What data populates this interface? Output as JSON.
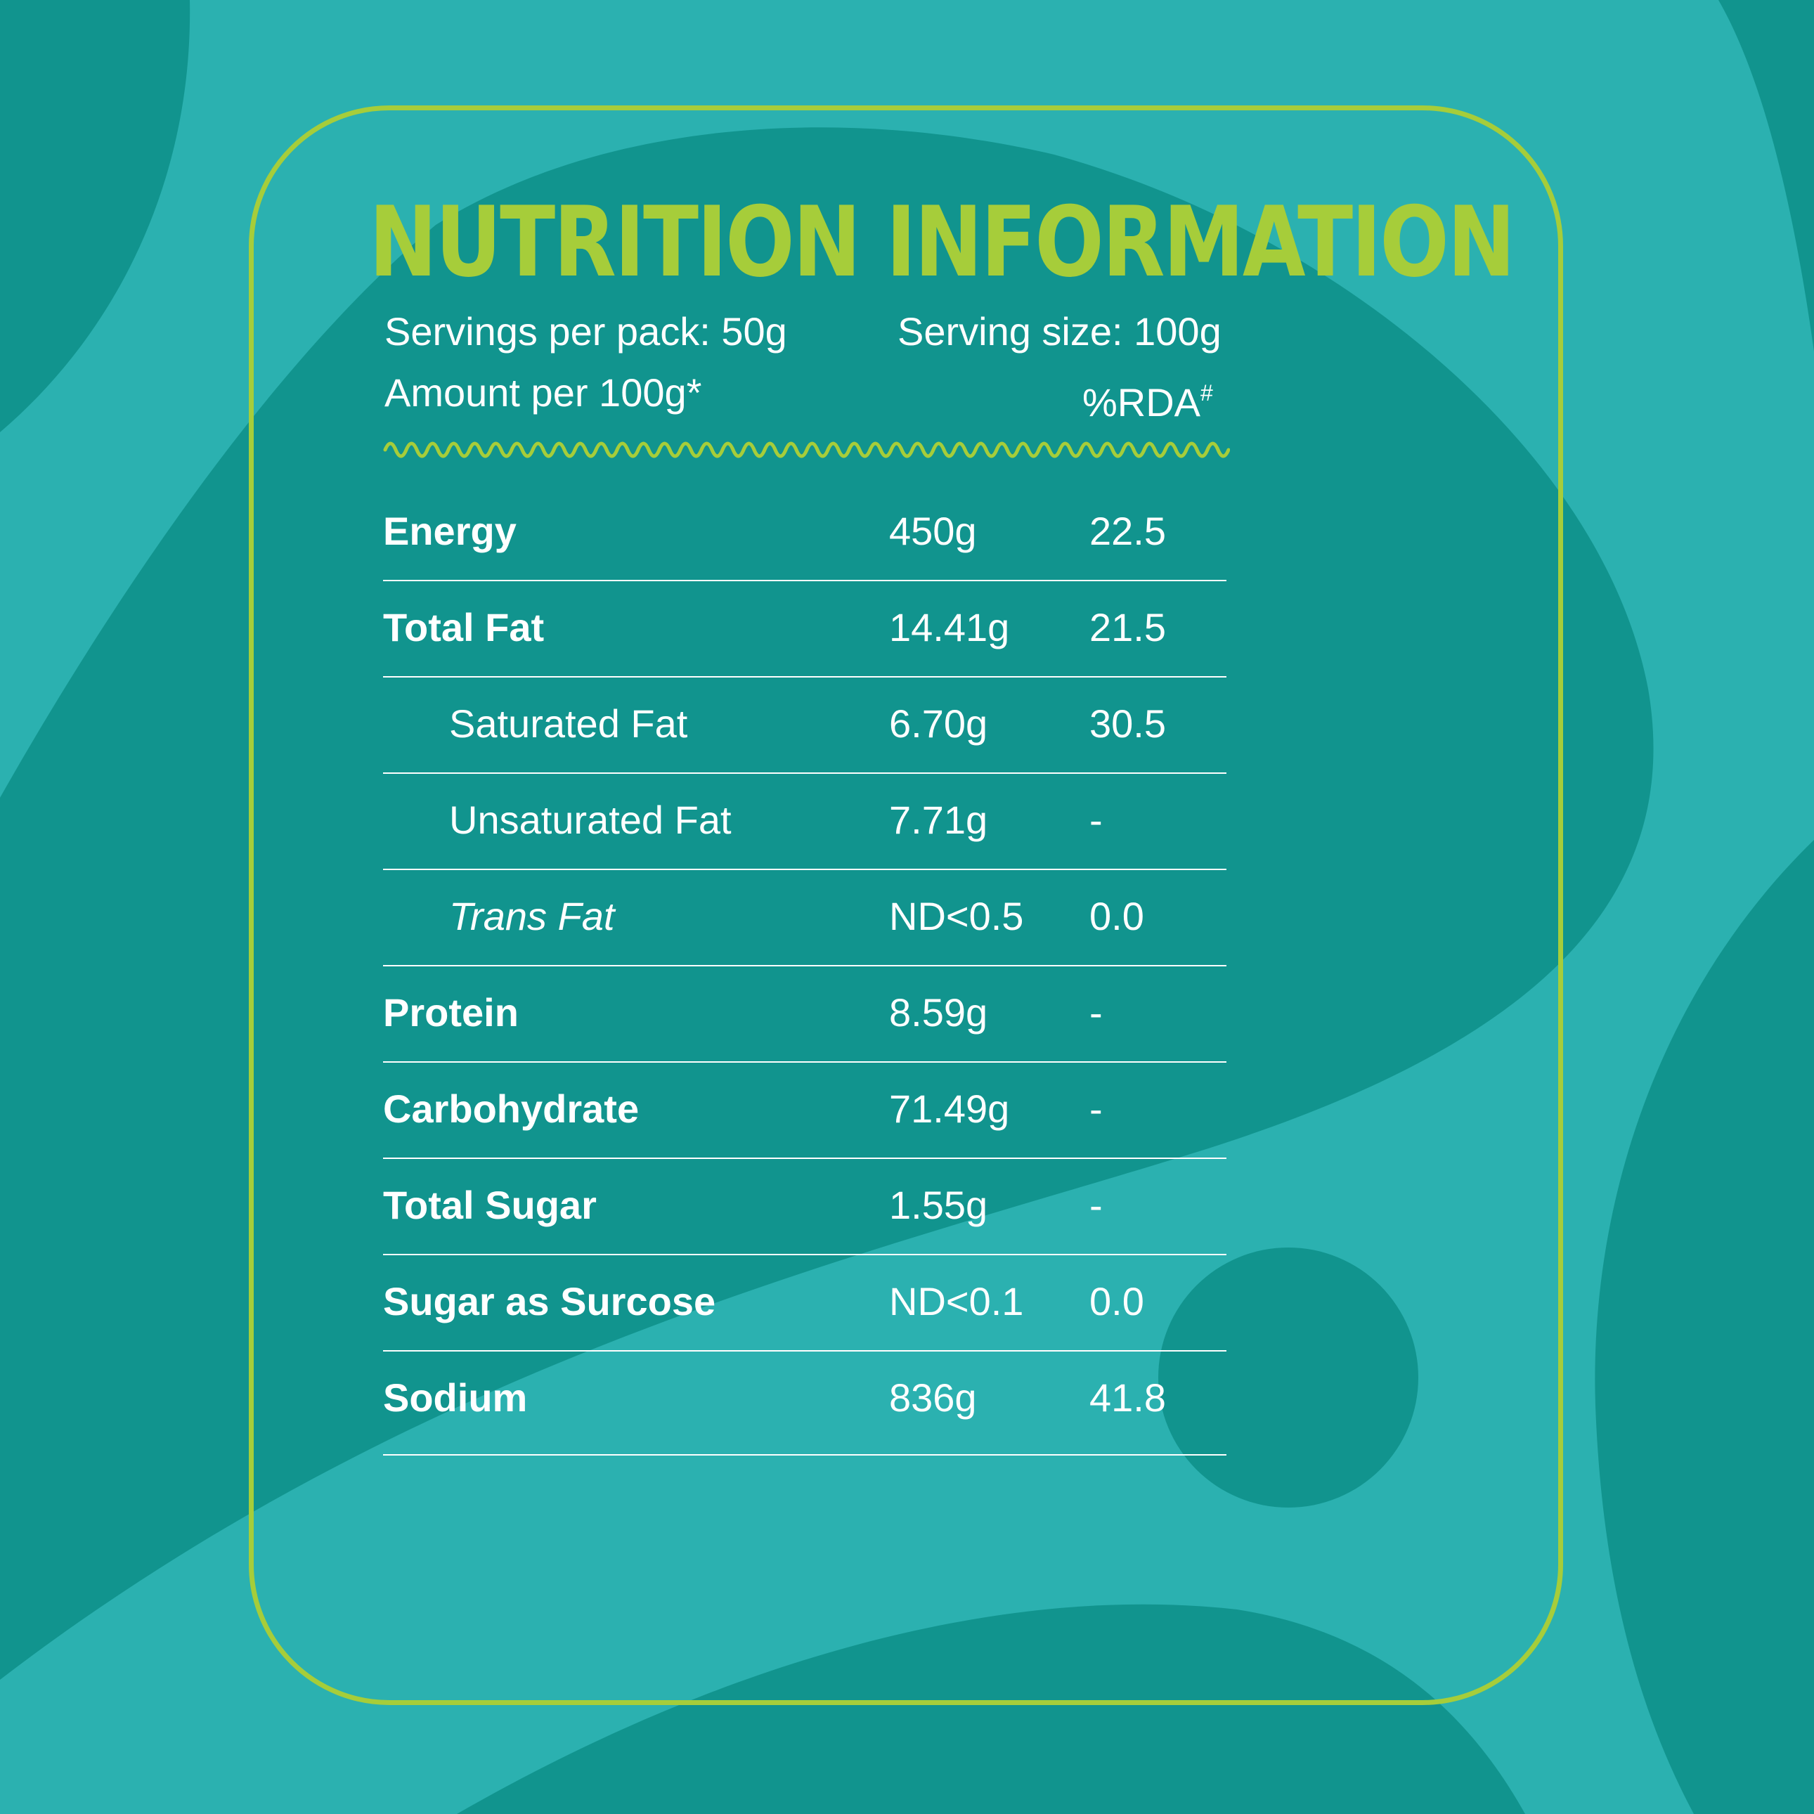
{
  "title": "NUTRITION INFORMATION",
  "servings_per_pack": "Servings per pack: 50g",
  "serving_size": "Serving size:  100g",
  "amount_per": "Amount per 100g*",
  "rda_label": "%RDA",
  "rda_mark": "#",
  "colors": {
    "background": "#2bb1b0",
    "shape": "#11948e",
    "accent": "#a6cd3a"
  },
  "rows": [
    {
      "name": "Energy",
      "amount": "450g",
      "rda": "22.5"
    },
    {
      "name": "Total Fat",
      "amount": "14.41g",
      "rda": "21.5"
    },
    {
      "name": "Saturated Fat",
      "amount": "6.70g",
      "rda": "30.5"
    },
    {
      "name": "Unsaturated Fat",
      "amount": "7.71g",
      "rda": "-"
    },
    {
      "name": "Trans Fat",
      "amount": "ND<0.5",
      "rda": "0.0"
    },
    {
      "name": "Protein",
      "amount": "8.59g",
      "rda": "-"
    },
    {
      "name": "Carbohydrate",
      "amount": "71.49g",
      "rda": "-"
    },
    {
      "name": "Total Sugar",
      "amount": "1.55g",
      "rda": "-"
    },
    {
      "name": "Sugar as Surcose",
      "amount": "ND<0.1",
      "rda": "0.0"
    },
    {
      "name": "Sodium",
      "amount": "836g",
      "rda": "41.8"
    }
  ]
}
